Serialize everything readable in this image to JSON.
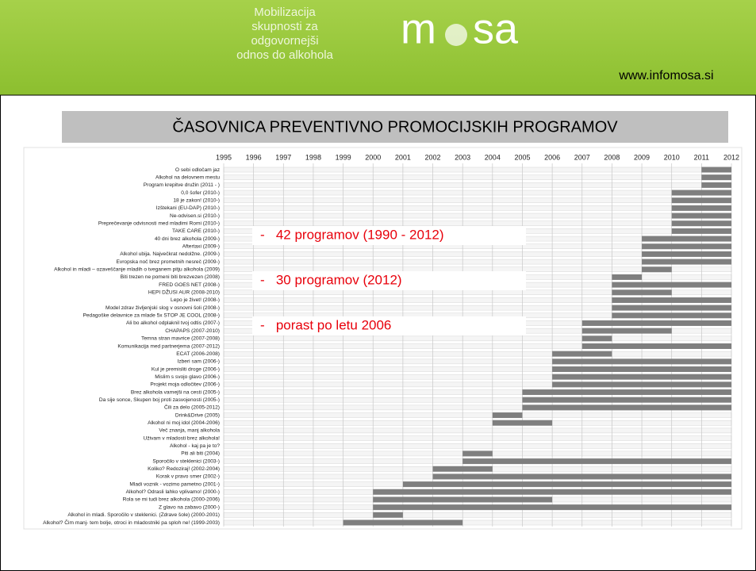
{
  "header": {
    "tagline": [
      "Mobilizacija",
      "skupnosti za",
      "odgovornejši",
      "odnos do alkohola"
    ],
    "logo_left": "m",
    "logo_right": "sa",
    "url": "www.infomosa.si"
  },
  "chart_data": {
    "type": "gantt",
    "title": "ČASOVNICA PREVENTIVNO PROMOCIJSKIH PROGRAMOV",
    "categories": [
      "O sebi odločam jaz",
      "Alkohol na delovnem mestu",
      "Program krepitve družin (2011 - )",
      "0,0 šofer (2010-)",
      "18 je zakon! (2010-)",
      "Izštekani (EU-DAP) (2010-)",
      "Ne-odvisen.si (2010-)",
      "Preprečevanje odvisnosti med mladimi Romi (2010-)",
      "TAKE CARE (2010-)",
      "40 dni brez alkohola (2009-)",
      "Aftertaxi (2009-)",
      "Alkohol ubija. Največkrat nedolžne. (2009-)",
      "Evropska noč brez prometnih nesreč (2009-)",
      "Alkohol in mladi – ozaveščanje mladih o tveganem pitju alkohola (2009)",
      "Biti trezen ne pomeni biti brezvezen (2008)",
      "FRED GOES NET (2008-)",
      "HEPI DŽUSI AUR (2008-2010)",
      "Lepo je živet! (2008-)",
      "Model zdrav življenjski slog v osnovni šoli (2008-)",
      "Pedagoške delavnice za mlade 5x STOP JE COOL (2008-)",
      "Ali bo alkohol odplaknil tvoj odtis (2007-)",
      "CHAPAPS (2007-2010)",
      "Temna stran mavrice (2007-2008)",
      "Komunikacija med partnerjema (2007-2012)",
      "ECAT (2006-2008)",
      "Izberi sam (2006-)",
      "Kul je premisliti droge (2006-)",
      "Mislim s svojo glavo (2006-)",
      "Projekt moja odločitev (2006-)",
      "Brez alkohola varnejši na cesti (2005-)",
      "Da sije sonce, Skupen boj proti zasvojenosti (2005-)",
      "Čili za delo (2005-2012)",
      "Drink&Drive (2005)",
      "Alkohol ni moj idol (2004-2006)",
      "Več znanja, manj alkohola",
      "Uživam v mladosti brez alkohola!",
      "Alkohol - kaj pa je to?",
      "Piti ali biti (2004)",
      "Sporočilo v steklenici (2003-)",
      "Koliko? Redoziraj! (2002-2004)",
      "Korak v pravo smer (2002-)",
      "Mladi voznik - vozimo pametno (2001-)",
      "Alkohol? Odrasli lahko vplivamo! (2000-)",
      "Rola se mi tudi brez alkohola (2000-2006)",
      "Z glavo na zabavo (2000-)",
      "Alkohol in mladi. Sporočilo v steklenici. (Zdrave šole) (2000-2001)",
      "Alkohol? Čim manj- tem bolje, otroci in mladostniki pa sploh ne! (1999-2003)"
    ],
    "start": [
      2011,
      2011,
      2011,
      2010,
      2010,
      2010,
      2010,
      2010,
      2010,
      2009,
      2009,
      2009,
      2009,
      2009,
      2008,
      2008,
      2008,
      2008,
      2008,
      2008,
      2007,
      2007,
      2007,
      2007,
      2006,
      2006,
      2006,
      2006,
      2006,
      2005,
      2005,
      2005,
      2004,
      2004,
      null,
      null,
      null,
      2003,
      2003,
      2002,
      2002,
      2001,
      2000,
      2000,
      2000,
      2000,
      1999
    ],
    "end": [
      2012,
      2012,
      2012,
      2012,
      2012,
      2012,
      2012,
      2012,
      2012,
      2012,
      2012,
      2012,
      2012,
      2010,
      2009,
      2012,
      2010,
      2012,
      2012,
      2012,
      2012,
      2010,
      2008,
      2012,
      2008,
      2012,
      2012,
      2012,
      2012,
      2012,
      2012,
      2012,
      2005,
      2006,
      null,
      null,
      null,
      2004,
      2012,
      2004,
      2012,
      2012,
      2012,
      2006,
      2012,
      2001,
      2003
    ],
    "color": "#7f7f7f",
    "xlim": [
      1995,
      2012
    ],
    "xticks": [
      1995,
      1996,
      1997,
      1998,
      1999,
      2000,
      2001,
      2002,
      2003,
      2004,
      2005,
      2006,
      2007,
      2008,
      2009,
      2010,
      2011,
      2012
    ],
    "grid": true,
    "annotations": [
      "-   42 programov (1990 - 2012)",
      "-   30 programov (2012)",
      "-   porast po letu 2006"
    ],
    "annotation_color": "#e8000b"
  }
}
